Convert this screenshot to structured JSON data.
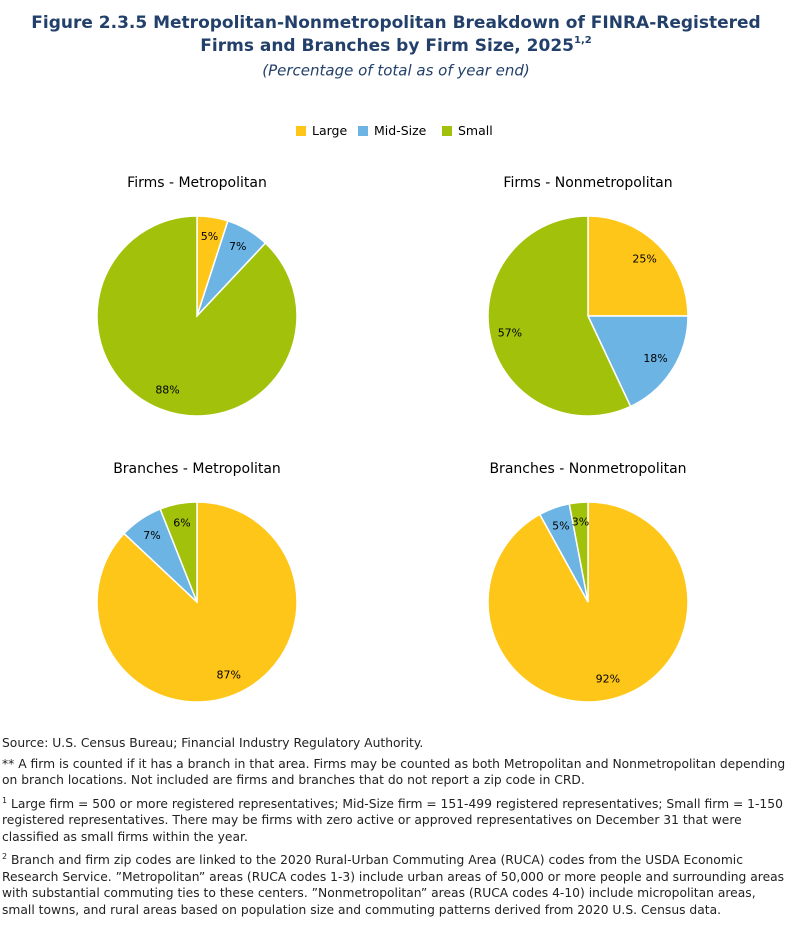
{
  "header": {
    "title": [
      "Figure 2.3.5 Metropolitan-Nonmetropolitan Breakdown of FINRA-Registered",
      "Firms and Branches by Firm Size, 2025"
    ],
    "title_sup": "1,2",
    "subtitle": "(Percentage of total as of year end)"
  },
  "chart_data": [
    {
      "type": "pie",
      "title": "Firms - Metropolitan",
      "categories": [
        "Large",
        "Mid-Size",
        "Small"
      ],
      "values": [
        5,
        7,
        88
      ],
      "value_labels": [
        "5%",
        "7%",
        "88%"
      ],
      "colors": [
        "#ffc61a",
        "#6cb4e4",
        "#a2c10a"
      ]
    },
    {
      "type": "pie",
      "title": "Firms - Nonmetropolitan",
      "categories": [
        "Large",
        "Mid-Size",
        "Small"
      ],
      "values": [
        25,
        18,
        57
      ],
      "value_labels": [
        "25%",
        "18%",
        "57%"
      ],
      "colors": [
        "#ffc61a",
        "#6cb4e4",
        "#a2c10a"
      ]
    },
    {
      "type": "pie",
      "title": "Branches - Metropolitan",
      "categories": [
        "Large",
        "Mid-Size",
        "Small"
      ],
      "values": [
        87,
        7,
        6
      ],
      "value_labels": [
        "87%",
        "7%",
        "6%"
      ],
      "colors": [
        "#ffc61a",
        "#6cb4e4",
        "#a2c10a"
      ]
    },
    {
      "type": "pie",
      "title": "Branches - Nonmetropolitan",
      "categories": [
        "Large",
        "Mid-Size",
        "Small"
      ],
      "values": [
        92,
        5,
        3
      ],
      "value_labels": [
        "92%",
        "5%",
        "3%"
      ],
      "colors": [
        "#ffc61a",
        "#6cb4e4",
        "#a2c10a"
      ]
    }
  ],
  "footer": {
    "source": "Source: U.S. Census Bureau; Financial Industry Regulatory Authority.",
    "notes": [
      {
        "text": "** A firm is counted if it has a branch in that area. Firms may be counted as both Metropolitan and Nonmetropolitan depending on branch locations. Not included are firms and branches that do not report a zip code in CRD."
      },
      {
        "mark": "1",
        "text": "Large firm = 500 or more registered representatives; Mid-Size firm = 151-499 registered representatives; Small firm = 1-150 registered representatives. There may be firms with zero active or approved representatives on December 31 that were classified as small firms within the year."
      },
      {
        "mark": "2",
        "text": "Branch and firm zip codes are linked to the 2020 Rural-Urban Commuting Area (RUCA) codes from the USDA Economic Research Service. ”Metropolitan” areas (RUCA codes 1-3) include urban areas of 50,000 or more people and surrounding areas with substantial commuting ties to these centers. ”Nonmetropolitan” areas (RUCA codes 4-10) include micropolitan areas, small towns, and rural areas based on population size and commuting patterns derived from 2020 U.S. Census data."
      }
    ]
  }
}
